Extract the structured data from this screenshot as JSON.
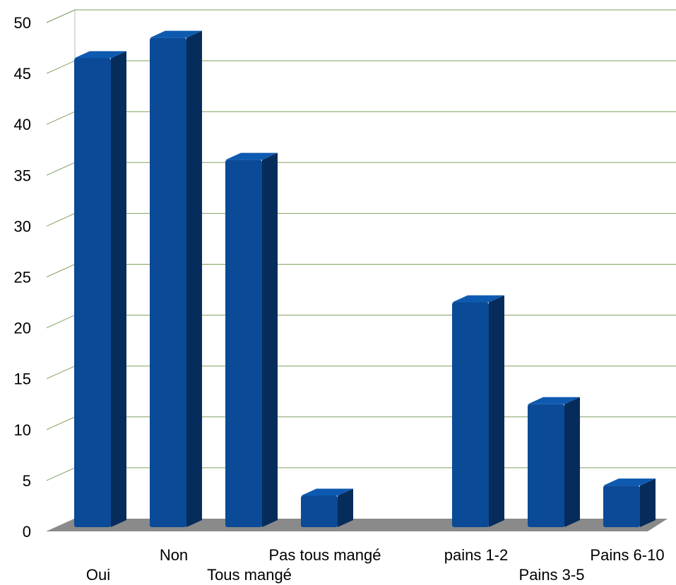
{
  "chart_data": {
    "type": "bar",
    "categories": [
      "Oui",
      "Non",
      "Tous mangé",
      "Pas tous mangé",
      "",
      "pains 1-2",
      "Pains 3-5",
      "Pains 6-10"
    ],
    "values": [
      46.5,
      48.5,
      36.5,
      3.5,
      null,
      22.5,
      12.5,
      4.5
    ],
    "ylim": [
      0,
      50
    ],
    "yticks": [
      0,
      5,
      10,
      15,
      20,
      25,
      30,
      35,
      40,
      45,
      50
    ],
    "grid": true,
    "three_d": true,
    "bar_color": "#0a4a96",
    "bar_side_color": "#062c5c",
    "floor_color": "#8a8a8a",
    "gridline_color": "#7fa060"
  }
}
